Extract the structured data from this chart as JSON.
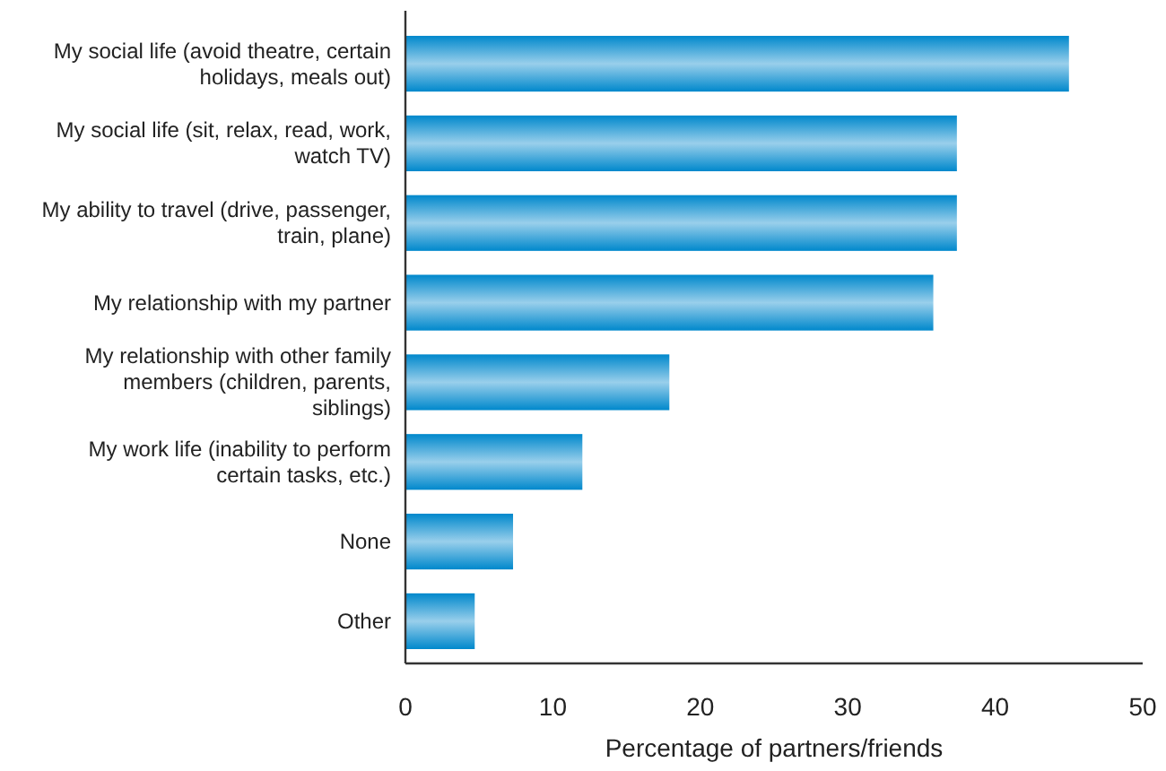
{
  "chart_data": {
    "type": "bar",
    "orientation": "horizontal",
    "xlabel": "Percentage of partners/friends",
    "categories": [
      "My social life (avoid theatre, certain holidays, meals out)",
      "My social life (sit, relax, read, work, watch TV)",
      "My ability to travel (drive, passenger, train, plane)",
      "My relationship with my partner",
      "My relationship with other family members (children, parents, siblings)",
      "My work life (inability to perform certain tasks, etc.)",
      "None",
      "Other"
    ],
    "values": [
      45.0,
      37.4,
      37.4,
      35.8,
      17.9,
      12.0,
      7.3,
      4.7
    ],
    "color": "#0088cc",
    "xlim": [
      0,
      50
    ],
    "xticks": [
      0,
      10,
      20,
      30,
      40,
      50
    ],
    "grid": false
  }
}
